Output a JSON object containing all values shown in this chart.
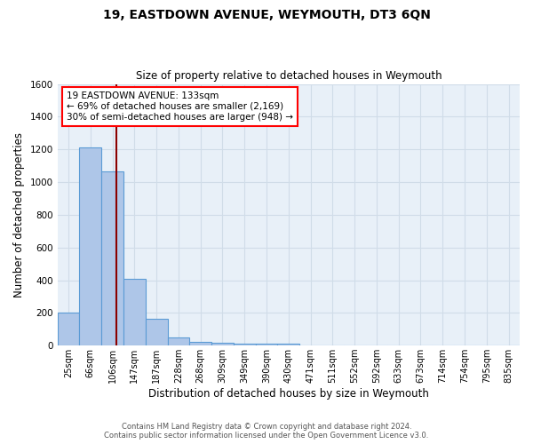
{
  "title": "19, EASTDOWN AVENUE, WEYMOUTH, DT3 6QN",
  "subtitle": "Size of property relative to detached houses in Weymouth",
  "xlabel": "Distribution of detached houses by size in Weymouth",
  "ylabel": "Number of detached properties",
  "footer_line1": "Contains HM Land Registry data © Crown copyright and database right 2024.",
  "footer_line2": "Contains public sector information licensed under the Open Government Licence v3.0.",
  "categories": [
    "25sqm",
    "66sqm",
    "106sqm",
    "147sqm",
    "187sqm",
    "228sqm",
    "268sqm",
    "309sqm",
    "349sqm",
    "390sqm",
    "430sqm",
    "471sqm",
    "511sqm",
    "552sqm",
    "592sqm",
    "633sqm",
    "673sqm",
    "714sqm",
    "754sqm",
    "795sqm",
    "835sqm"
  ],
  "values": [
    200,
    1210,
    1065,
    408,
    163,
    50,
    25,
    18,
    12,
    10,
    10,
    0,
    0,
    0,
    0,
    0,
    0,
    0,
    0,
    0,
    0
  ],
  "bar_color": "#aec6e8",
  "bar_edge_color": "#5b9bd5",
  "grid_color": "#d0dce8",
  "background_color": "#e8f0f8",
  "property_line_color": "#8b0000",
  "ylim": [
    0,
    1600
  ],
  "yticks": [
    0,
    200,
    400,
    600,
    800,
    1000,
    1200,
    1400,
    1600
  ],
  "annotation_text": "19 EASTDOWN AVENUE: 133sqm\n← 69% of detached houses are smaller (2,169)\n30% of semi-detached houses are larger (948) →",
  "annotation_box_color": "white",
  "annotation_box_edge": "red",
  "prop_sqm": 133,
  "bin_starts": [
    25,
    66,
    106,
    147,
    187,
    228,
    268,
    309,
    349,
    390,
    430,
    471,
    511,
    552,
    592,
    633,
    673,
    714,
    754,
    795,
    835
  ]
}
